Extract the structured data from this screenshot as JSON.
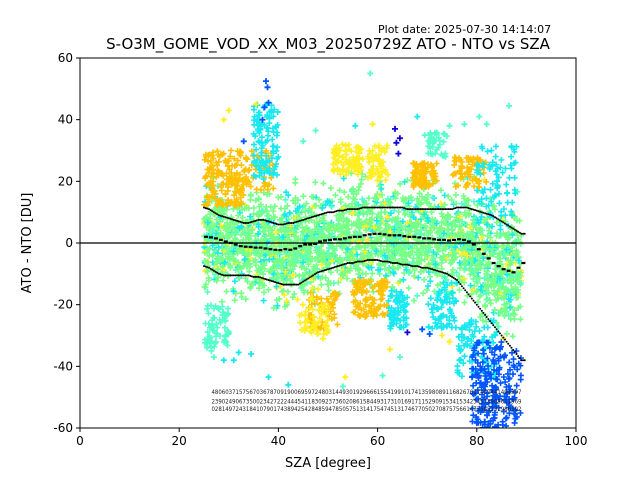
{
  "header": {
    "plot_date": "Plot date: 2025-07-30 14:14:07"
  },
  "chart_data": {
    "type": "scatter",
    "title": "S-O3M_GOME_VOD_XX_M03_20250729Z ATO - NTO vs SZA",
    "xlabel": "SZA [degree]",
    "ylabel": "ATO - NTO [DU]",
    "xlim": [
      0,
      100
    ],
    "ylim": [
      -60,
      60
    ],
    "x_ticks": [
      0,
      20,
      40,
      60,
      80,
      100
    ],
    "y_ticks": [
      -60,
      -40,
      -20,
      0,
      20,
      40,
      60
    ],
    "grid": false,
    "legend": "none",
    "colors": {
      "cloud_main": "#77ff88",
      "cloud_cyan": "#18e8f0",
      "cloud_yellow": "#ffee22",
      "cloud_orange": "#ffc000",
      "cloud_blue": "#0055ff",
      "cloud_dark_blue": "#1100dd",
      "cloud_aqua": "#55ffcc",
      "median": "#000000",
      "zero_line": "#000000"
    },
    "zero_line_y": 0,
    "sza_bins": [
      25,
      26,
      27,
      28,
      29,
      30,
      31,
      32,
      33,
      34,
      35,
      36,
      37,
      38,
      39,
      40,
      41,
      42,
      43,
      44,
      45,
      46,
      47,
      48,
      49,
      50,
      51,
      52,
      53,
      54,
      55,
      56,
      57,
      58,
      59,
      60,
      61,
      62,
      63,
      64,
      65,
      66,
      67,
      68,
      69,
      70,
      71,
      72,
      73,
      74,
      75,
      76,
      77,
      78,
      79,
      80,
      81,
      82,
      83,
      84,
      85,
      86,
      87,
      88,
      89
    ],
    "median": [
      2.0,
      1.8,
      1.5,
      1.0,
      0.5,
      0.0,
      -0.5,
      -1.0,
      -1.2,
      -1.3,
      -1.5,
      -1.5,
      -1.8,
      -2.0,
      -2.2,
      -2.3,
      -2.0,
      -2.2,
      -1.8,
      -1.0,
      -0.5,
      -0.5,
      -0.3,
      0.5,
      0.8,
      1.0,
      1.2,
      1.2,
      1.5,
      1.8,
      2.0,
      2.0,
      2.5,
      2.8,
      3.0,
      3.0,
      2.8,
      2.5,
      2.5,
      2.5,
      2.2,
      2.0,
      2.0,
      1.8,
      1.5,
      1.5,
      1.2,
      1.0,
      1.0,
      0.8,
      1.0,
      1.2,
      1.0,
      0.5,
      -0.5,
      -2.0,
      -3.5,
      -5.0,
      -6.5,
      -7.5,
      -8.5,
      -9.0,
      -9.5,
      -8.0,
      -6.5
    ],
    "upper_bound": [
      11.5,
      11.0,
      10.0,
      9.0,
      8.5,
      8.0,
      7.5,
      7.0,
      6.5,
      6.5,
      7.0,
      7.5,
      7.5,
      7.0,
      6.5,
      6.0,
      6.0,
      6.5,
      6.5,
      7.0,
      7.5,
      8.0,
      8.5,
      9.0,
      9.5,
      10.0,
      10.0,
      10.5,
      10.5,
      11.0,
      11.0,
      11.0,
      11.5,
      11.5,
      11.5,
      11.5,
      11.5,
      11.5,
      11.5,
      11.5,
      11.5,
      11.0,
      11.0,
      11.0,
      11.0,
      11.0,
      11.0,
      11.0,
      11.0,
      11.0,
      11.0,
      11.5,
      11.5,
      11.5,
      11.0,
      10.5,
      10.0,
      9.5,
      9.0,
      8.0,
      7.0,
      6.0,
      5.0,
      4.0,
      3.0
    ],
    "lower_bound": [
      -7.5,
      -8.0,
      -9.0,
      -10.0,
      -10.5,
      -10.5,
      -10.5,
      -10.5,
      -10.5,
      -10.5,
      -11.0,
      -11.0,
      -11.5,
      -12.0,
      -12.5,
      -13.0,
      -13.5,
      -13.5,
      -13.5,
      -13.5,
      -12.5,
      -11.5,
      -10.5,
      -9.5,
      -9.0,
      -8.5,
      -8.0,
      -7.5,
      -7.0,
      -6.5,
      -6.5,
      -6.0,
      -6.0,
      -5.5,
      -5.5,
      -5.5,
      -6.0,
      -6.0,
      -6.5,
      -6.5,
      -7.0,
      -7.0,
      -7.5,
      -7.5,
      -8.0,
      -8.0,
      -8.5,
      -9.0,
      -9.5,
      -10.0,
      -11.0,
      -12.0,
      -14.0,
      -16.0,
      -18.0,
      -20.0,
      -22.0,
      -24.0,
      -26.0,
      -28.0,
      -30.0,
      -32.0,
      -34.0,
      -36.0,
      -38.0
    ],
    "bin_annotation_row1_y": -49,
    "bin_annotation_row2_y": -52,
    "bin_annotation_row3_y": -54.5,
    "outliers": [
      {
        "x": 37.5,
        "y": 52.5,
        "c": "blue"
      },
      {
        "x": 37.8,
        "y": 50.5,
        "c": "blue"
      },
      {
        "x": 38.0,
        "y": 45.5,
        "c": "blue"
      },
      {
        "x": 37.2,
        "y": 44.0,
        "c": "blue"
      },
      {
        "x": 36.8,
        "y": 40.0,
        "c": "blue"
      },
      {
        "x": 33.0,
        "y": 33.0,
        "c": "blue"
      },
      {
        "x": 58.5,
        "y": 55.0,
        "c": "aqua"
      },
      {
        "x": 30.0,
        "y": 43.0,
        "c": "yellow"
      },
      {
        "x": 35.5,
        "y": 45.0,
        "c": "yellow"
      },
      {
        "x": 29.0,
        "y": 40.0,
        "c": "yellow"
      },
      {
        "x": 63.5,
        "y": 37.0,
        "c": "dark_blue"
      },
      {
        "x": 64.5,
        "y": 34.0,
        "c": "dark_blue"
      },
      {
        "x": 63.8,
        "y": 32.5,
        "c": "dark_blue"
      },
      {
        "x": 64.2,
        "y": 29.0,
        "c": "dark_blue"
      },
      {
        "x": 68.0,
        "y": 41.0,
        "c": "cyan"
      },
      {
        "x": 86.5,
        "y": 44.5,
        "c": "aqua"
      },
      {
        "x": 77.5,
        "y": 38.5,
        "c": "aqua"
      },
      {
        "x": 80.5,
        "y": 41.0,
        "c": "aqua"
      },
      {
        "x": 55.5,
        "y": 38.0,
        "c": "cyan"
      },
      {
        "x": 47.5,
        "y": 36.5,
        "c": "aqua"
      },
      {
        "x": 29.0,
        "y": -38.0,
        "c": "cyan"
      },
      {
        "x": 31.0,
        "y": -38.0,
        "c": "cyan"
      },
      {
        "x": 32.0,
        "y": -35.5,
        "c": "cyan"
      },
      {
        "x": 34.5,
        "y": -36.0,
        "c": "cyan"
      },
      {
        "x": 27.0,
        "y": -37.0,
        "c": "aqua"
      },
      {
        "x": 26.5,
        "y": -35.0,
        "c": "aqua"
      },
      {
        "x": 38.0,
        "y": -43.5,
        "c": "cyan"
      },
      {
        "x": 42.0,
        "y": -46.0,
        "c": "cyan"
      },
      {
        "x": 53.0,
        "y": -46.5,
        "c": "aqua"
      },
      {
        "x": 49.0,
        "y": -31.0,
        "c": "yellow"
      },
      {
        "x": 53.5,
        "y": -43.5,
        "c": "yellow"
      },
      {
        "x": 61.0,
        "y": -43.0,
        "c": "aqua"
      },
      {
        "x": 62.5,
        "y": -34.5,
        "c": "yellow"
      },
      {
        "x": 64.5,
        "y": -37.0,
        "c": "aqua"
      },
      {
        "x": 66.0,
        "y": -29.0,
        "c": "dark_blue"
      },
      {
        "x": 69.0,
        "y": -28.0,
        "c": "blue"
      },
      {
        "x": 70.5,
        "y": -29.5,
        "c": "blue"
      },
      {
        "x": 73.0,
        "y": -30.0,
        "c": "yellow"
      },
      {
        "x": 74.5,
        "y": -32.0,
        "c": "yellow"
      },
      {
        "x": 72.0,
        "y": -27.0,
        "c": "cyan"
      },
      {
        "x": 76.5,
        "y": -38.0,
        "c": "cyan"
      },
      {
        "x": 36.0,
        "y": 33.0,
        "c": "cyan"
      },
      {
        "x": 45.0,
        "y": 33.0,
        "c": "aqua"
      },
      {
        "x": 69.5,
        "y": 35.0,
        "c": "aqua"
      },
      {
        "x": 59.0,
        "y": 38.5,
        "c": "yellow"
      },
      {
        "x": 74.5,
        "y": 38.0,
        "c": "aqua"
      },
      {
        "x": 82.0,
        "y": 38.5,
        "c": "aqua"
      }
    ]
  }
}
